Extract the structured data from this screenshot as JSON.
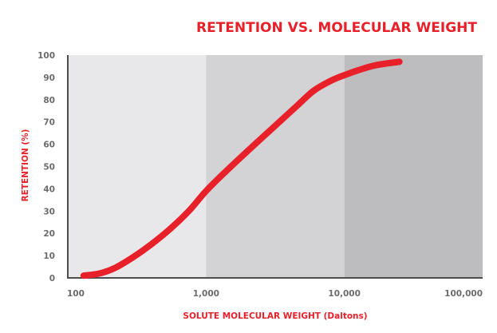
{
  "colors": {
    "band1": "#e8e8ea",
    "band2": "#d3d3d5",
    "band3": "#bdbdbf",
    "curve": "#e8202a",
    "axis": "#4d4d4d"
  },
  "chart_data": {
    "type": "line",
    "title": "RETENTION VS. MOLECULAR WEIGHT",
    "xlabel": "SOLUTE MOLECULAR WEIGHT (Daltons)",
    "ylabel": "RETENTION (%)",
    "x_scale": "log",
    "xlim": [
      100,
      100000
    ],
    "ylim": [
      0,
      100
    ],
    "x_ticks": [
      100,
      1000,
      10000,
      100000
    ],
    "x_tick_labels": [
      "100",
      "1,000",
      "10,000",
      "100,000"
    ],
    "y_ticks": [
      0,
      10,
      20,
      30,
      40,
      50,
      60,
      70,
      80,
      90,
      100
    ],
    "y_tick_labels": [
      "0",
      "10",
      "20",
      "30",
      "40",
      "50",
      "60",
      "70",
      "80",
      "90",
      "100"
    ],
    "background_bands": [
      [
        100,
        1000
      ],
      [
        1000,
        10000
      ],
      [
        10000,
        100000
      ]
    ],
    "grid": false,
    "series": [
      {
        "x": [
          130,
          170,
          220,
          300,
          400,
          550,
          750,
          1000,
          1400,
          2000,
          3000,
          4500,
          6000,
          8000,
          10000,
          13000,
          17000,
          25000
        ],
        "y": [
          1,
          2,
          4.5,
          9.5,
          15,
          22,
          30,
          39,
          48,
          57,
          67,
          77,
          84,
          88.5,
          91,
          93.5,
          95.5,
          97
        ]
      }
    ]
  }
}
